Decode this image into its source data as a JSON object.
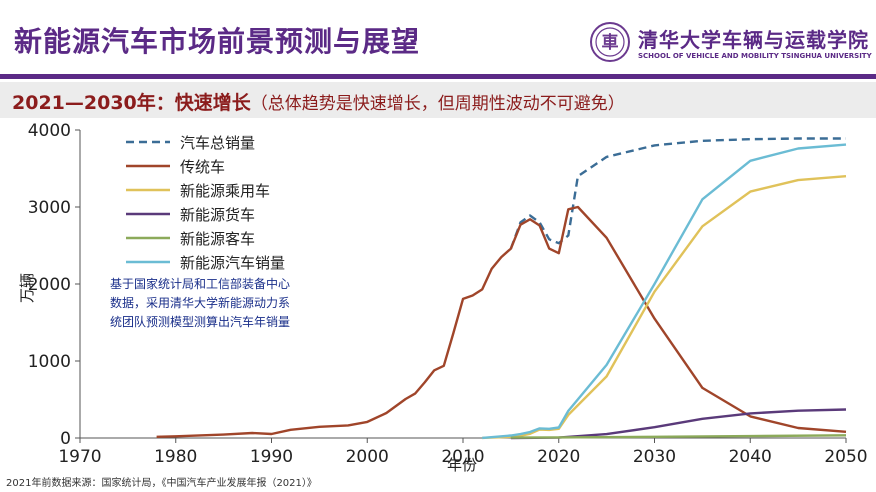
{
  "header": {
    "title": "新能源汽车市场前景预测与展望",
    "org_name": "清华大学车辆与运载学院",
    "org_name_en": "SCHOOL OF VEHICLE AND MOBILITY TSINGHUA UNIVERSITY",
    "logo_char": "車"
  },
  "subtitle": {
    "lead": "2021—2030年：快速增长",
    "desc": "（总体趋势是快速增长，但周期性波动不可避免）"
  },
  "annotation": [
    "基于国家统计局和工信部装备中心",
    "数据，采用清华大学新能源动力系",
    "统团队预测模型测算出汽车年销量"
  ],
  "footnote": "2021年前数据来源：国家统计局，《中国汽车产业发展年报（2021）》",
  "colors": {
    "title": "#5b2a86",
    "subtitle": "#8b1c1c",
    "total": "#3b6d96",
    "traditional": "#a0452a",
    "nev_passenger": "#e0c25a",
    "nev_truck": "#5a3a7a",
    "nev_bus": "#8caa5a",
    "nev_total": "#6bbcd4"
  },
  "chart_data": {
    "type": "line",
    "xlabel": "年份",
    "ylabel": "万辆",
    "xlim": [
      1970,
      2050
    ],
    "ylim": [
      0,
      4000
    ],
    "xticks": [
      1970,
      1980,
      1990,
      2000,
      2010,
      2020,
      2030,
      2040,
      2050
    ],
    "yticks": [
      0,
      1000,
      2000,
      3000,
      4000
    ],
    "legend_position": "top-left",
    "grid": false,
    "series": [
      {
        "name": "汽车总销量",
        "key": "total",
        "style": "dashed",
        "x": [
          2015,
          2016,
          2017,
          2018,
          2019,
          2020,
          2021,
          2022,
          2025,
          2030,
          2035,
          2040,
          2045,
          2050
        ],
        "y": [
          2460,
          2800,
          2890,
          2800,
          2580,
          2530,
          2630,
          3400,
          3650,
          3800,
          3860,
          3880,
          3890,
          3890
        ]
      },
      {
        "name": "传统车",
        "key": "traditional",
        "style": "solid",
        "x": [
          1978,
          1980,
          1985,
          1988,
          1990,
          1992,
          1995,
          1998,
          2000,
          2002,
          2004,
          2005,
          2006,
          2007,
          2008,
          2009,
          2010,
          2011,
          2012,
          2013,
          2014,
          2015,
          2016,
          2017,
          2018,
          2019,
          2020,
          2021,
          2022,
          2025,
          2030,
          2035,
          2040,
          2045,
          2050
        ],
        "y": [
          15,
          22,
          44,
          65,
          52,
          106,
          145,
          163,
          209,
          325,
          507,
          576,
          722,
          879,
          938,
          1364,
          1806,
          1850,
          1930,
          2198,
          2349,
          2460,
          2770,
          2840,
          2760,
          2460,
          2400,
          2970,
          3000,
          2600,
          1550,
          650,
          280,
          130,
          80
        ]
      },
      {
        "name": "新能源乘用车",
        "key": "nev_passenger",
        "style": "solid",
        "x": [
          2012,
          2015,
          2016,
          2017,
          2018,
          2019,
          2020,
          2021,
          2025,
          2030,
          2035,
          2040,
          2045,
          2050
        ],
        "y": [
          1,
          15,
          30,
          55,
          110,
          105,
          120,
          300,
          800,
          1900,
          2750,
          3200,
          3350,
          3400
        ]
      },
      {
        "name": "新能源货车",
        "key": "nev_truck",
        "style": "solid",
        "x": [
          2015,
          2020,
          2025,
          2030,
          2035,
          2040,
          2045,
          2050
        ],
        "y": [
          0,
          5,
          50,
          140,
          250,
          320,
          355,
          370
        ]
      },
      {
        "name": "新能源客车",
        "key": "nev_bus",
        "style": "solid",
        "x": [
          2015,
          2020,
          2030,
          2040,
          2050
        ],
        "y": [
          5,
          8,
          15,
          25,
          35
        ]
      },
      {
        "name": "新能源汽车销量",
        "key": "nev_total",
        "style": "solid",
        "x": [
          2012,
          2015,
          2016,
          2017,
          2018,
          2019,
          2020,
          2021,
          2025,
          2030,
          2035,
          2040,
          2045,
          2050
        ],
        "y": [
          1,
          33,
          51,
          78,
          125,
          120,
          136,
          352,
          950,
          2000,
          3100,
          3600,
          3760,
          3810
        ]
      }
    ]
  }
}
